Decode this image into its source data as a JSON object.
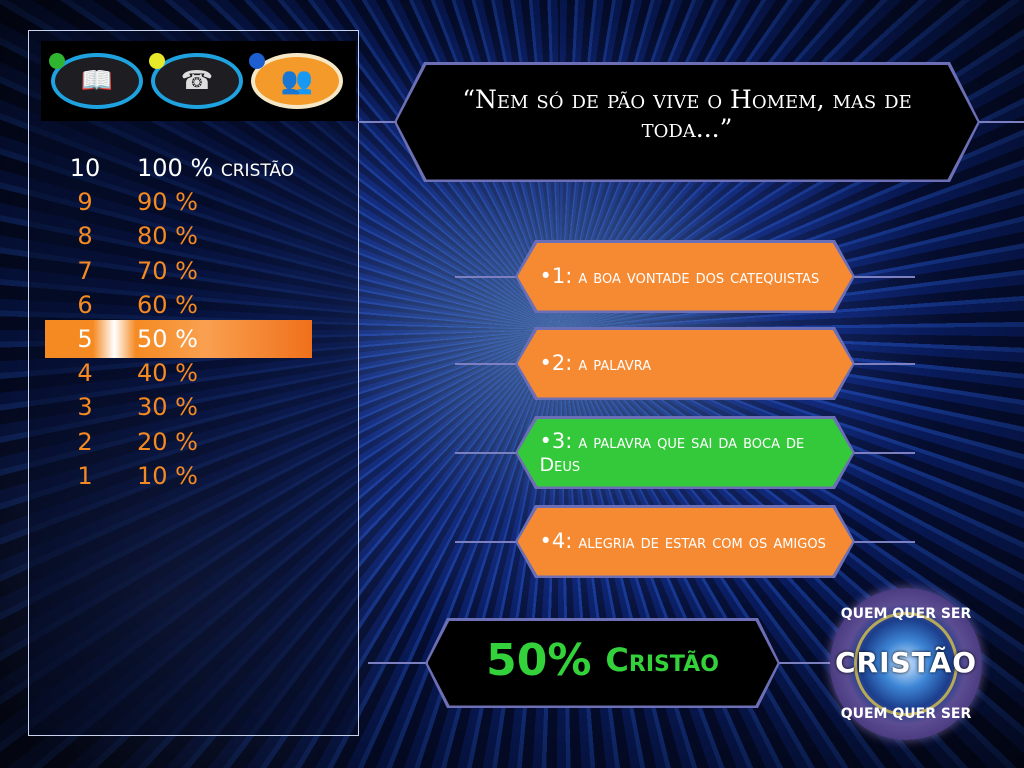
{
  "lifelines": [
    {
      "name": "fifty-fifty",
      "icon": "book-icon",
      "dot_color": "#2fb52f"
    },
    {
      "name": "phone",
      "icon": "phone-icon",
      "dot_color": "#e8e82a"
    },
    {
      "name": "audience",
      "icon": "audience-icon",
      "dot_color": "#1e5fd0"
    }
  ],
  "ladder": [
    {
      "n": "10",
      "v": "100 % cristão"
    },
    {
      "n": "9",
      "v": "90 %"
    },
    {
      "n": "8",
      "v": "80 %"
    },
    {
      "n": "7",
      "v": "70 %"
    },
    {
      "n": "6",
      "v": "60 %"
    },
    {
      "n": "5",
      "v": "50 %",
      "current": true
    },
    {
      "n": "4",
      "v": "40 %"
    },
    {
      "n": "3",
      "v": "30 %"
    },
    {
      "n": "2",
      "v": "20 %"
    },
    {
      "n": "1",
      "v": "10 %"
    }
  ],
  "question": "“Nem só de pão vive o Homem, mas de toda...”",
  "answers": [
    {
      "label": "•1:",
      "text": "a boa vontade dos catequistas",
      "state": "normal"
    },
    {
      "label": "•2:",
      "text": "a palavra",
      "state": "normal"
    },
    {
      "label": "•3:",
      "text": "a palavra que sai da boca de Deus",
      "state": "correct"
    },
    {
      "label": "•4:",
      "text": "alegria de estar com os amigos",
      "state": "normal"
    }
  ],
  "result": {
    "percent": "50%",
    "word": "Cristão"
  },
  "logo": {
    "top": "QUEM QUER SER",
    "middle": "CRISTÃO",
    "bottom": "QUEM QUER SER"
  },
  "colors": {
    "answer": "#f58a33",
    "correct": "#33c93b",
    "result_text": "#33d13a",
    "border": "#6c6fb5"
  }
}
